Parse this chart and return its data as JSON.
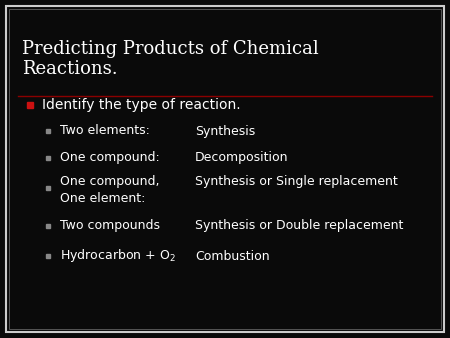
{
  "background_color": "#0a0a0a",
  "border_outer_color": "#cccccc",
  "border_inner_color": "#555555",
  "title_line1": "Predicting Products of Chemical",
  "title_line2": "Reactions.",
  "title_color": "#ffffff",
  "title_fontsize": 13,
  "divider_color": "#8b0000",
  "bullet1_color": "#cc1111",
  "bullet2_color": "#888888",
  "text_color": "#ffffff",
  "main_bullet_text": "Identify the type of reaction.",
  "main_bullet_fontsize": 10,
  "sub_items": [
    {
      "left": "Two elements:",
      "right": "Synthesis"
    },
    {
      "left": "One compound:",
      "right": "Decomposition"
    },
    {
      "left": "One compound,",
      "left2": "One element:",
      "right": "Synthesis or Single replacement"
    },
    {
      "left": "Two compounds",
      "right": "Synthesis or Double replacement"
    },
    {
      "left": "Hydrocarbon + O$_2$",
      "right": "Combustion"
    }
  ],
  "sub_fontsize": 9,
  "fig_width": 4.5,
  "fig_height": 3.38,
  "dpi": 100
}
